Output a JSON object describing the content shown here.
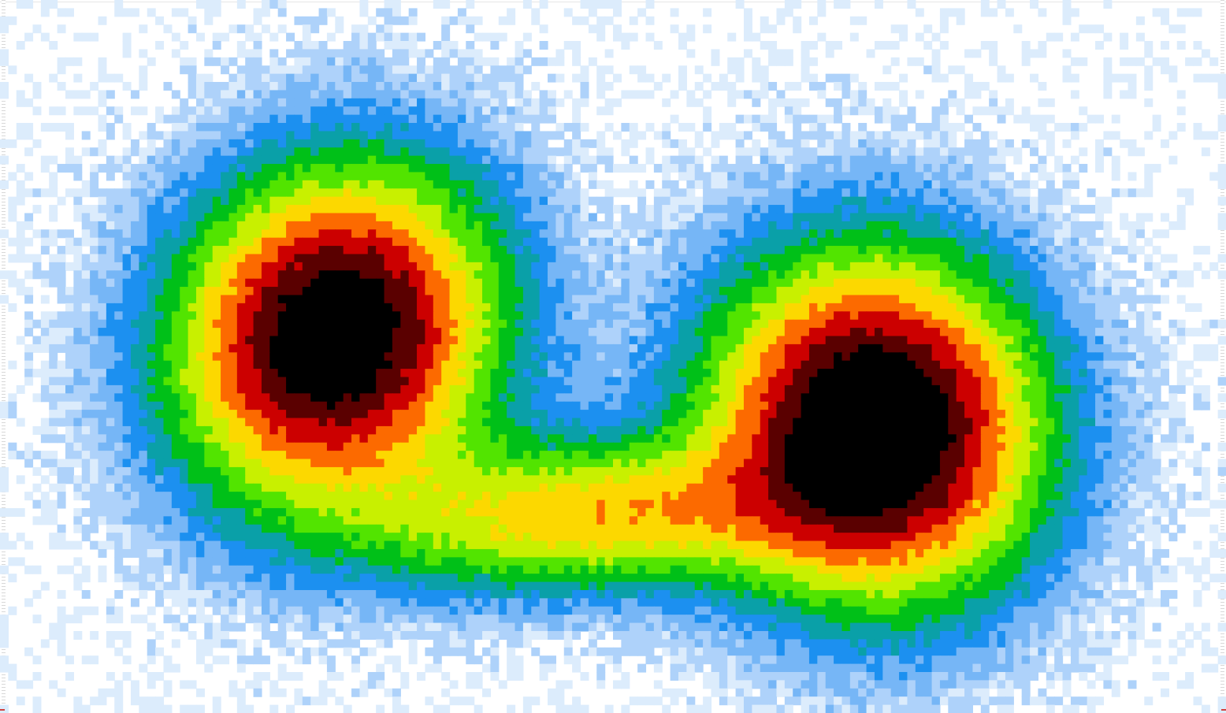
{
  "chart_data": {
    "type": "heatmap",
    "grid": {
      "columns": 150,
      "rows": 87
    },
    "x": [
      0,
      150
    ],
    "y": [
      0,
      87
    ],
    "colorscale": [
      "#ffffff",
      "#dcecfc",
      "#aed2fa",
      "#76b6f6",
      "#1c90f0",
      "#0aa0a8",
      "#00c018",
      "#52e400",
      "#c8f000",
      "#fcd800",
      "#fc6a00",
      "#cc0000",
      "#5a0000",
      "#000000"
    ],
    "peaks": [
      {
        "x": 41,
        "y": 41,
        "sx": 18,
        "sy": 20,
        "amp": 1.0,
        "rot": 0.62
      },
      {
        "x": 107,
        "y": 52,
        "sx": 19,
        "sy": 20,
        "amp": 1.06,
        "rot": -0.35
      },
      {
        "x": 72,
        "y": 63,
        "sx": 26,
        "sy": 9,
        "amp": 0.48,
        "rot": -0.05
      }
    ]
  }
}
